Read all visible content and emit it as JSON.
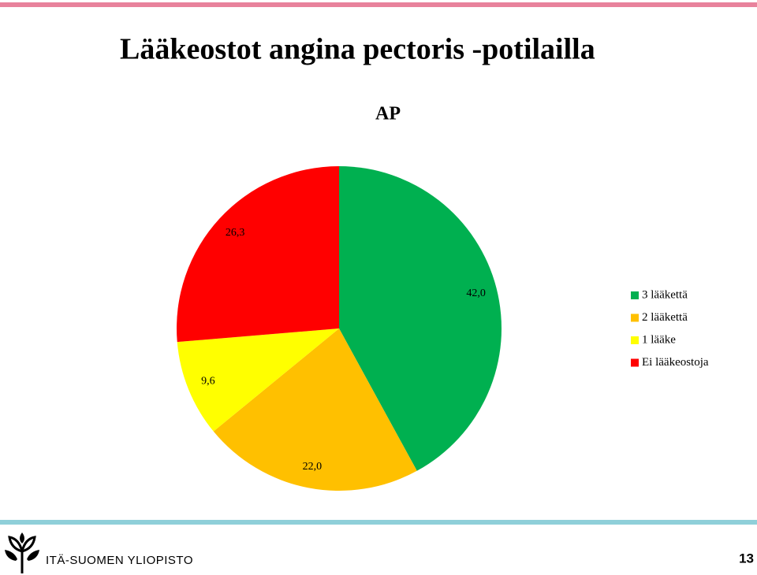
{
  "slide": {
    "title": "Lääkeostot angina pectoris -potilailla",
    "footer": "ITÄ-SUOMEN YLIOPISTO",
    "page_number": 13
  },
  "chart_data": {
    "type": "pie",
    "title": "AP",
    "categories": [
      "3 lääkettä",
      "2 lääkettä",
      "1 lääke",
      "Ei lääkeostoja"
    ],
    "values": [
      42.0,
      22.0,
      9.6,
      26.3
    ],
    "value_labels": [
      "42,0",
      "22,0",
      "9,6",
      "26,3"
    ],
    "colors": [
      "#00b050",
      "#ffc000",
      "#ffff00",
      "#ff0000"
    ],
    "legend": "right"
  }
}
